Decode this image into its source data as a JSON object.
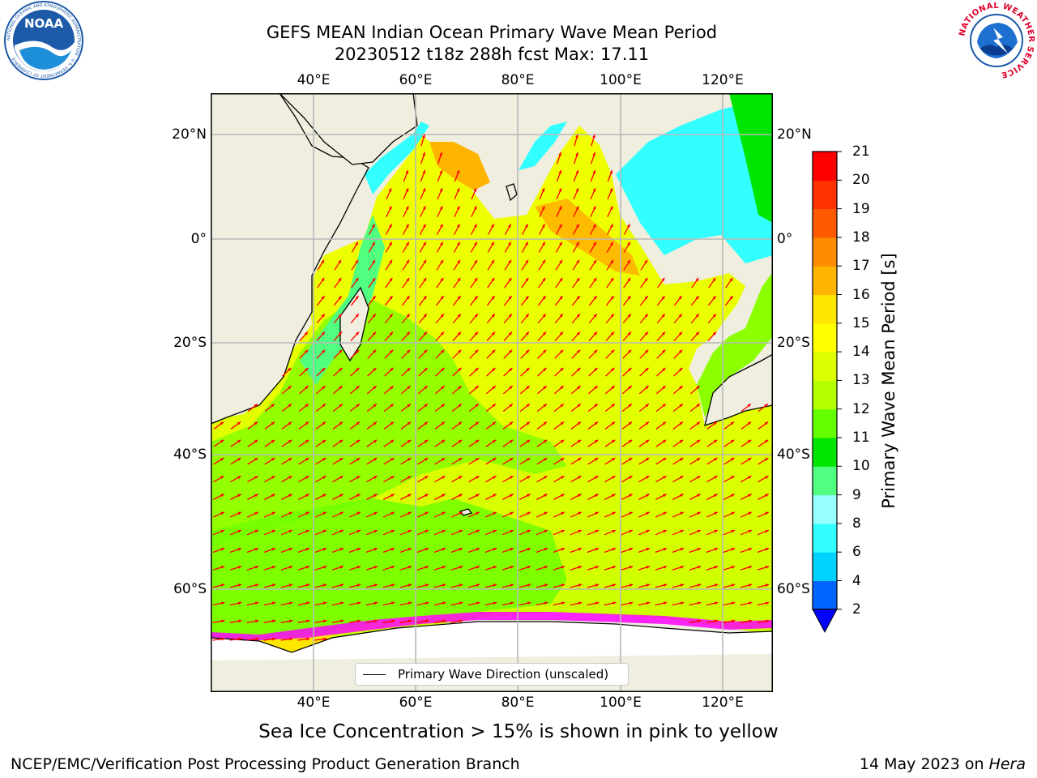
{
  "title": {
    "line1": "GEFS MEAN Indian Ocean Primary Wave Mean Period",
    "line2": "20230512 t18z 288h fcst   Max: 17.11"
  },
  "map": {
    "lon_ticks": [
      "40°E",
      "60°E",
      "80°E",
      "100°E",
      "120°E"
    ],
    "lat_ticks": [
      "20°N",
      "0°",
      "20°S",
      "40°S",
      "60°S"
    ],
    "colors": {
      "land": "#efeedf",
      "ice": "#ffffff",
      "arrow": "#ff0000",
      "gridline": "#b8b8b8"
    },
    "legend_label": "Primary Wave Direction (unscaled)",
    "sea_ice_note": "Sea Ice Concentration > 15% is shown in pink to yellow"
  },
  "colorbar": {
    "title": "Primary Wave Mean Period [s]",
    "tick_labels": [
      "2",
      "4",
      "6",
      "8",
      "9",
      "10",
      "11",
      "12",
      "13",
      "14",
      "15",
      "16",
      "17",
      "18",
      "19",
      "20",
      "21"
    ],
    "colors": [
      "#0064ff",
      "#00d2ff",
      "#32ffff",
      "#96ffff",
      "#50ff80",
      "#00e600",
      "#64ff00",
      "#b4ff00",
      "#dcff00",
      "#ffff00",
      "#ffe600",
      "#ffb400",
      "#ff8c00",
      "#ff5a00",
      "#ff3200",
      "#ff0000"
    ],
    "under_color": "#0000ff"
  },
  "logos": {
    "noaa": "NOAA",
    "noaa_ring": "NATIONAL OCEANIC AND ATMOSPHERIC ADMINISTRATION · U.S. DEPARTMENT OF COMMERCE",
    "nws": "NATIONAL WEATHER SERVICE"
  },
  "footer": {
    "left": "NCEP/EMC/Verification Post Processing Product Generation Branch",
    "right_prefix": "14 May 2023 on ",
    "right_host": "Hera"
  }
}
